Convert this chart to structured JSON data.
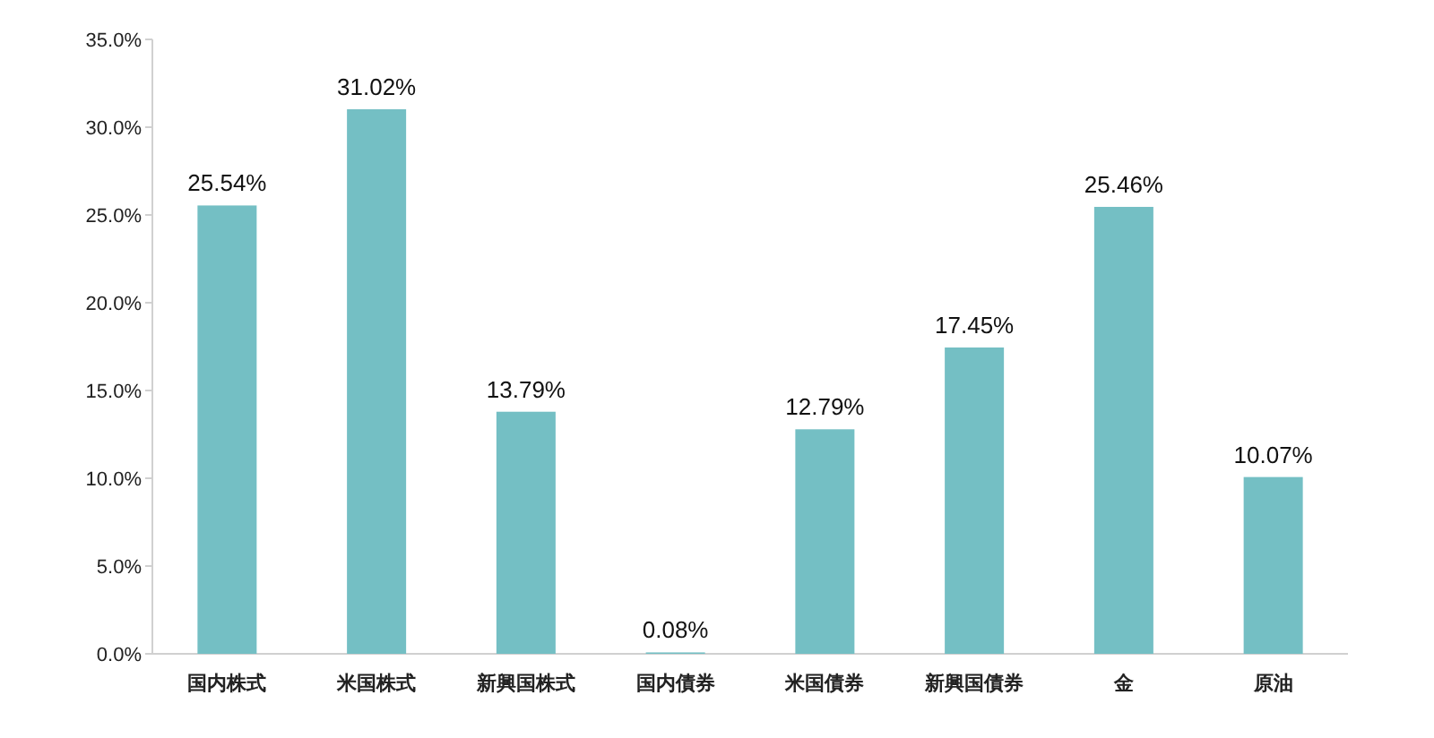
{
  "chart_data": {
    "type": "bar",
    "categories": [
      "国内株式",
      "米国株式",
      "新興国株式",
      "国内債券",
      "米国債券",
      "新興国債券",
      "金",
      "原油"
    ],
    "values": [
      25.54,
      31.02,
      13.79,
      0.08,
      12.79,
      17.45,
      25.46,
      10.07
    ],
    "value_labels": [
      "25.54%",
      "31.02%",
      "13.79%",
      "0.08%",
      "12.79%",
      "17.45%",
      "25.46%",
      "10.07%"
    ],
    "color": "#74bfc4",
    "ylim": [
      0,
      35
    ],
    "yticks": [
      {
        "value": 0,
        "label": "0.0%"
      },
      {
        "value": 5,
        "label": "5.0%"
      },
      {
        "value": 10,
        "label": "10.0%"
      },
      {
        "value": 15,
        "label": "15.0%"
      },
      {
        "value": 20,
        "label": "20.0%"
      },
      {
        "value": 25,
        "label": "25.0%"
      },
      {
        "value": 30,
        "label": "30.0%"
      },
      {
        "value": 35,
        "label": "35.0%"
      }
    ],
    "grid": false
  }
}
